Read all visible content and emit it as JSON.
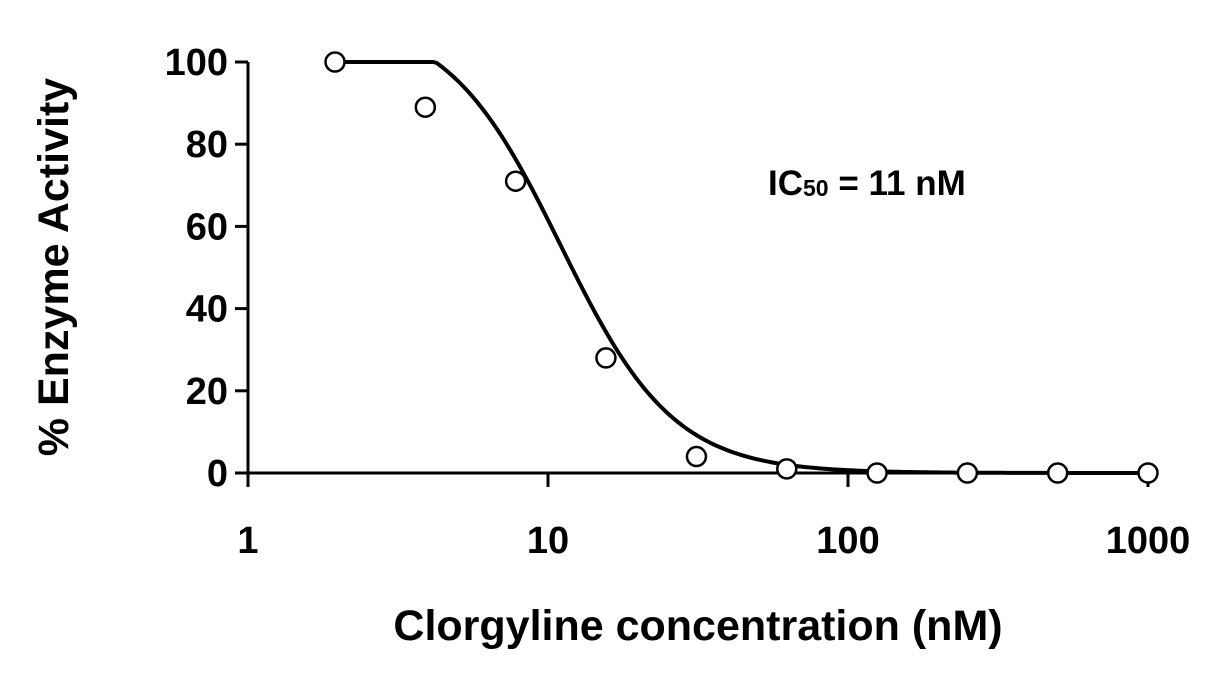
{
  "chart_data": {
    "type": "line",
    "xscale": "log",
    "xlabel": "Clorgyline concentration (nM)",
    "ylabel": "% Enzyme Activity",
    "xlim": [
      1,
      1000
    ],
    "ylim": [
      0,
      100
    ],
    "xticks": [
      1,
      10,
      100,
      1000
    ],
    "xtick_labels": [
      "1",
      "10",
      "100",
      "1000"
    ],
    "yticks": [
      0,
      20,
      40,
      60,
      80,
      100
    ],
    "ytick_labels": [
      "0",
      "20",
      "40",
      "60",
      "80",
      "100"
    ],
    "grid": false,
    "annotation": {
      "prefix": "IC",
      "subscript": "50",
      "suffix": " = 11 nM"
    },
    "series": [
      {
        "x": [
          1.95,
          3.9,
          7.8,
          15.6,
          31.25,
          62.5,
          125,
          250,
          500,
          1000
        ],
        "y": [
          100,
          89,
          71,
          28,
          4,
          1,
          0,
          0,
          0,
          0
        ],
        "fit_curve": {
          "model": "four-parameter logistic",
          "top": 111,
          "bottom": 0,
          "ic50": 11,
          "hill": 2.3
        }
      }
    ],
    "colors": {
      "line": "#000000",
      "marker_fill": "#ffffff",
      "marker_stroke": "#000000",
      "axis": "#000000"
    }
  }
}
